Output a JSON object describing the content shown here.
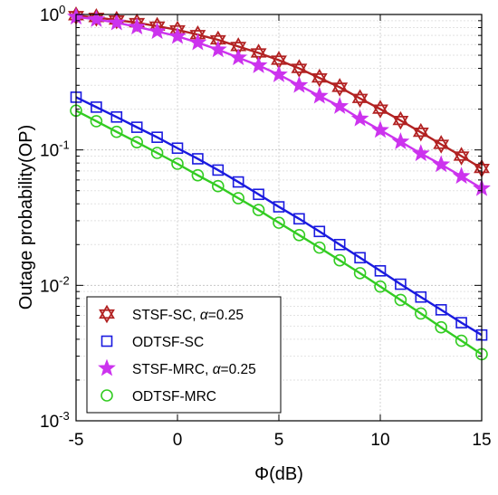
{
  "chart_data": {
    "type": "line",
    "xlabel": "Φ(dB)",
    "ylabel": "Outage probability(OP)",
    "xlim": [
      -5,
      15
    ],
    "ylim": [
      0.001,
      1
    ],
    "yscale": "log",
    "grid": true,
    "legend_position": "lower-left",
    "x_ticks": [
      {
        "value": -5,
        "label": "-5"
      },
      {
        "value": 0,
        "label": "0"
      },
      {
        "value": 5,
        "label": "5"
      },
      {
        "value": 10,
        "label": "10"
      },
      {
        "value": 15,
        "label": "15"
      }
    ],
    "y_ticks": [
      {
        "value": 1,
        "base": "10",
        "exp": "0"
      },
      {
        "value": 0.1,
        "base": "10",
        "exp": "-1"
      },
      {
        "value": 0.01,
        "base": "10",
        "exp": "-2"
      },
      {
        "value": 0.001,
        "base": "10",
        "exp": "-3"
      }
    ],
    "x": [
      -5,
      -4,
      -3,
      -2,
      -1,
      0,
      1,
      2,
      3,
      4,
      5,
      6,
      7,
      8,
      9,
      10,
      11,
      12,
      13,
      14,
      15
    ],
    "series": [
      {
        "name": "STSF-SC, α=0.25",
        "color": "#b22222",
        "marker": "hexagram",
        "values": [
          0.98,
          0.95,
          0.91,
          0.87,
          0.82,
          0.77,
          0.71,
          0.65,
          0.58,
          0.52,
          0.46,
          0.4,
          0.34,
          0.29,
          0.24,
          0.2,
          0.165,
          0.135,
          0.11,
          0.09,
          0.073
        ]
      },
      {
        "name": "ODTSF-SC",
        "color": "#1a1adf",
        "marker": "square",
        "values": [
          0.245,
          0.207,
          0.175,
          0.147,
          0.124,
          0.103,
          0.086,
          0.071,
          0.058,
          0.047,
          0.038,
          0.031,
          0.025,
          0.02,
          0.016,
          0.0128,
          0.0102,
          0.0082,
          0.0066,
          0.0053,
          0.0043
        ]
      },
      {
        "name": "STSF-MRC, α=0.25",
        "color": "#cc33ee",
        "marker": "pentagram",
        "values": [
          0.96,
          0.92,
          0.87,
          0.81,
          0.75,
          0.69,
          0.62,
          0.55,
          0.48,
          0.42,
          0.36,
          0.3,
          0.25,
          0.21,
          0.17,
          0.14,
          0.115,
          0.094,
          0.078,
          0.064,
          0.052
        ]
      },
      {
        "name": "ODTSF-MRC",
        "color": "#33cc22",
        "marker": "circle",
        "values": [
          0.195,
          0.163,
          0.136,
          0.114,
          0.095,
          0.079,
          0.065,
          0.054,
          0.044,
          0.036,
          0.029,
          0.0235,
          0.019,
          0.0153,
          0.0123,
          0.0098,
          0.0078,
          0.0062,
          0.0049,
          0.0039,
          0.0031
        ]
      }
    ],
    "legend": [
      {
        "text": "STSF-SC, ",
        "alpha": "α",
        "suffix": "=0.25"
      },
      {
        "text": "ODTSF-SC",
        "alpha": "",
        "suffix": ""
      },
      {
        "text": "STSF-MRC, ",
        "alpha": "α",
        "suffix": "=0.25"
      },
      {
        "text": "ODTSF-MRC",
        "alpha": "",
        "suffix": ""
      }
    ]
  }
}
